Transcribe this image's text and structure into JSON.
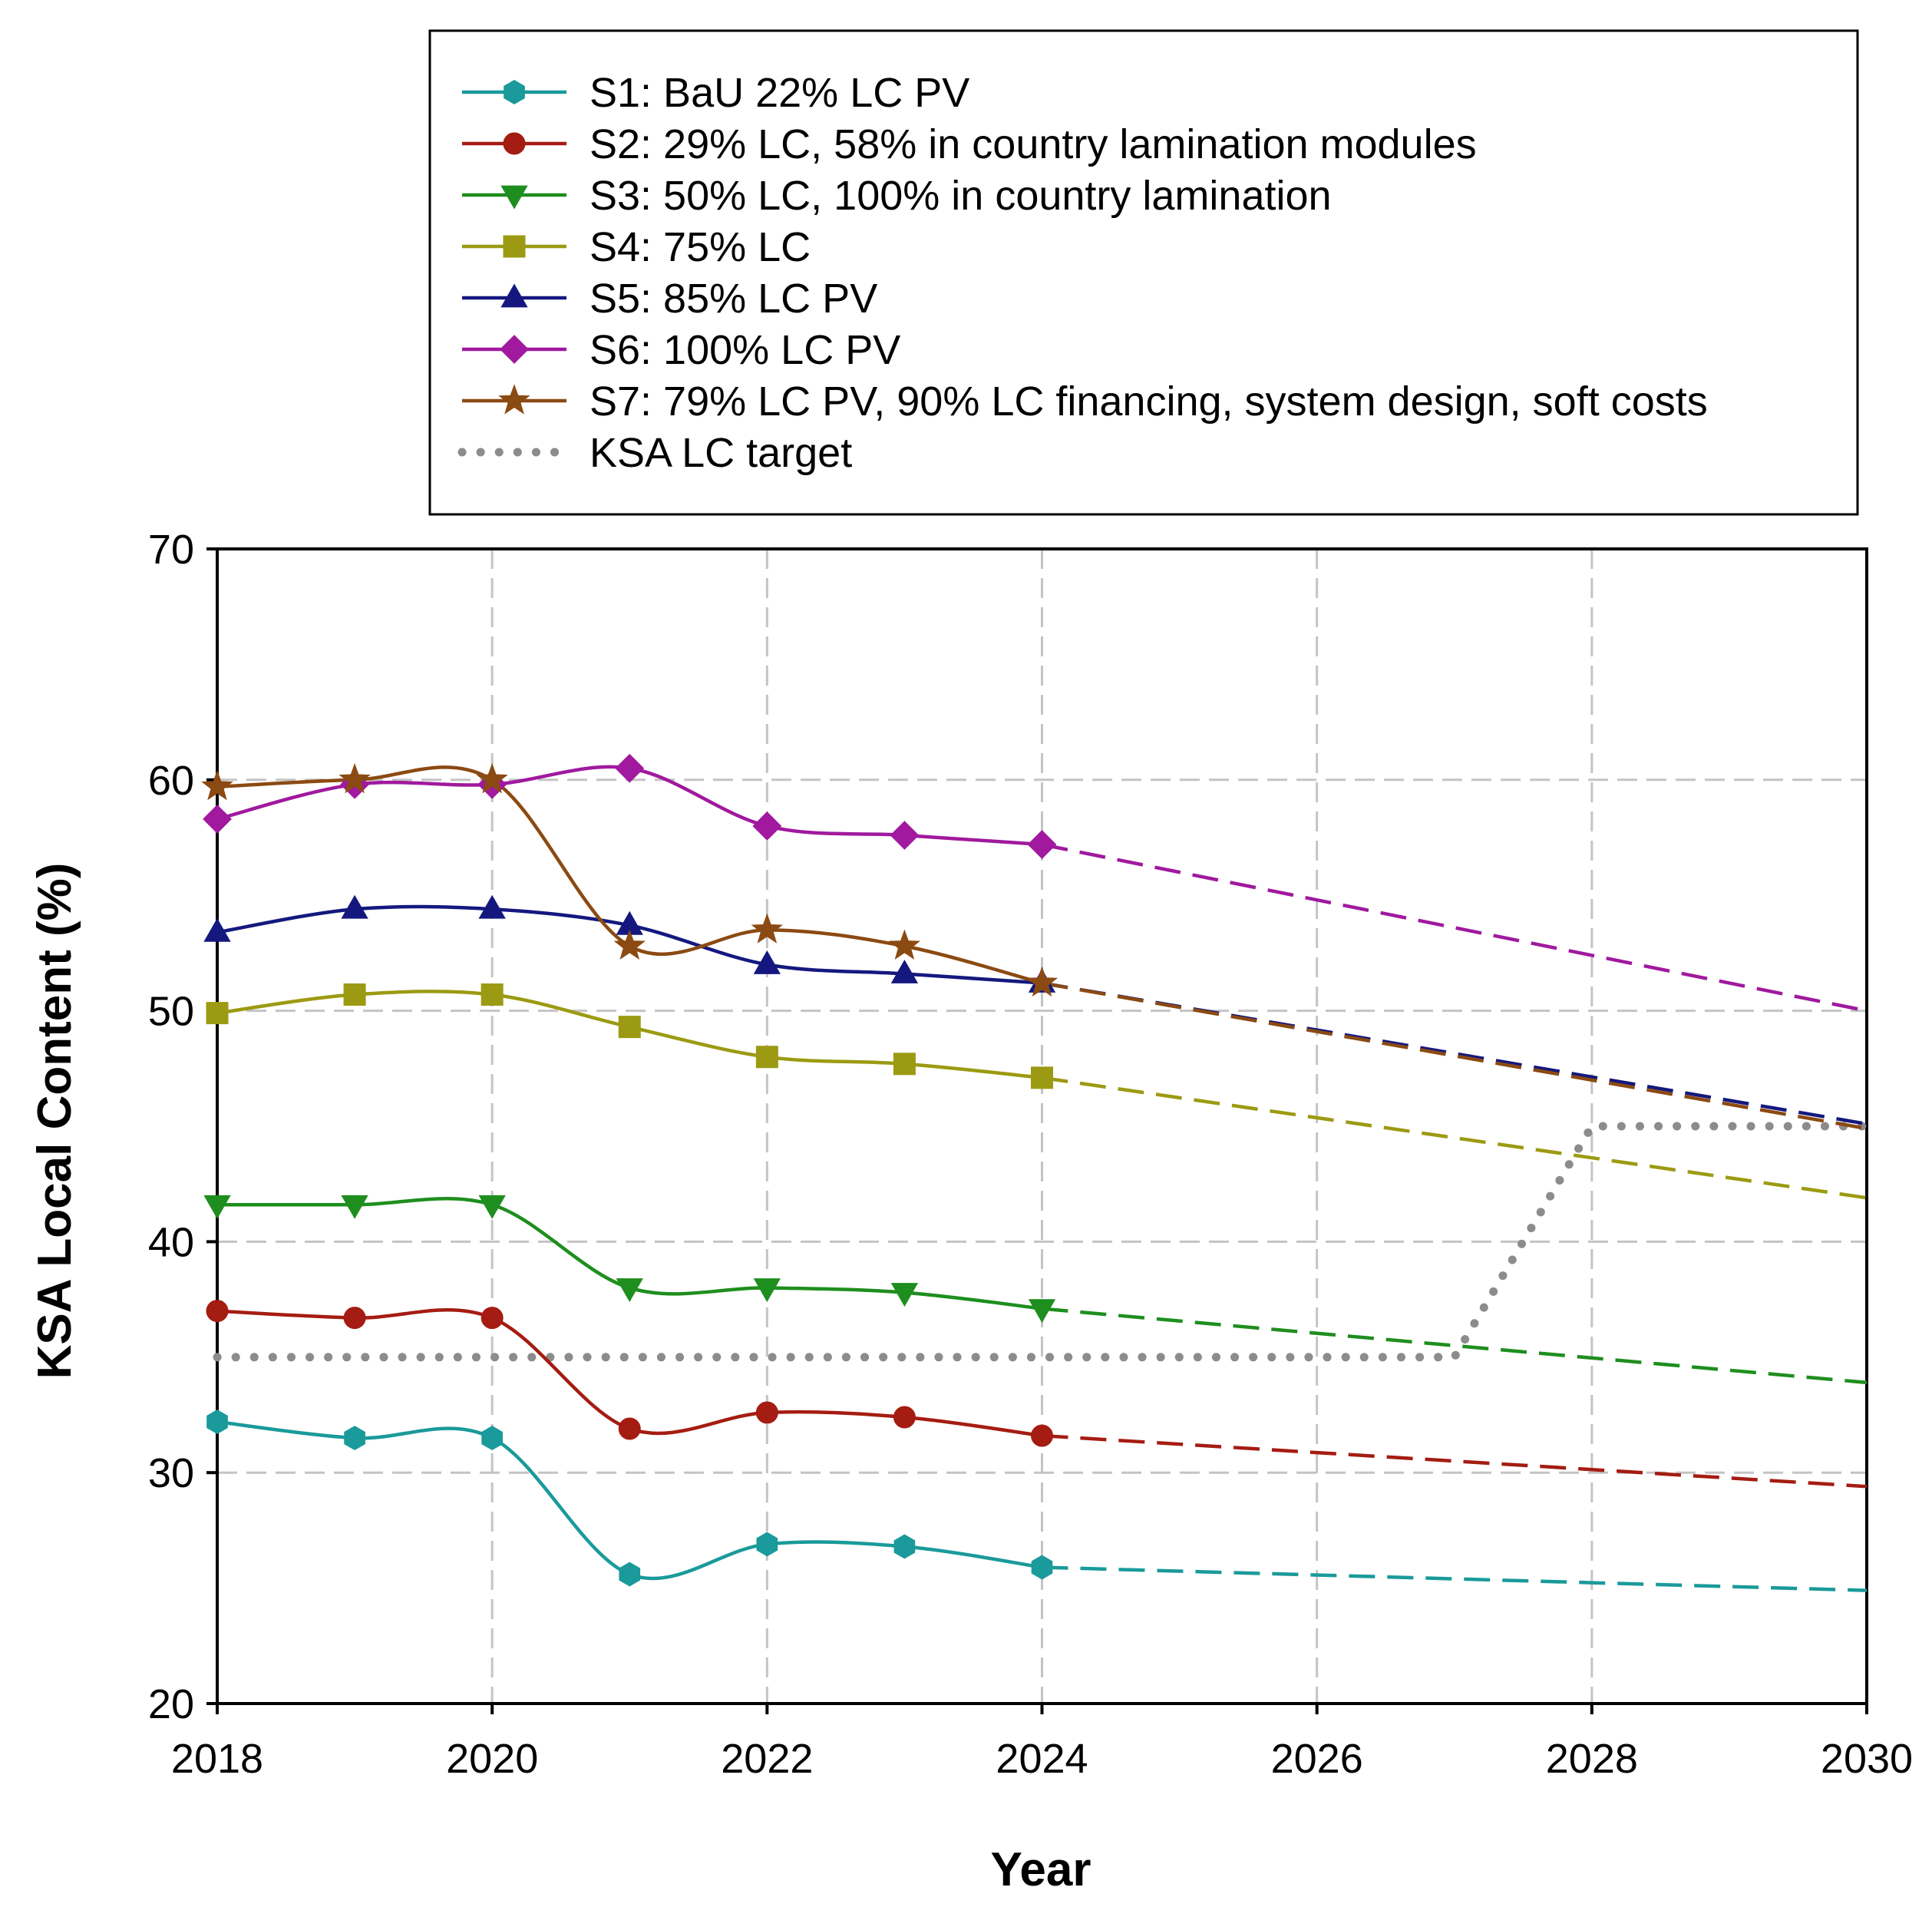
{
  "chart_data": {
    "type": "line",
    "xlabel": "Year",
    "ylabel": "KSA Local Content (%)",
    "xlim": [
      2018,
      2030
    ],
    "ylim": [
      20,
      70
    ],
    "xticks": [
      2018,
      2020,
      2022,
      2024,
      2026,
      2028,
      2030
    ],
    "yticks": [
      20,
      30,
      40,
      50,
      60,
      70
    ],
    "x_tick_labels": [
      "2018",
      "2020",
      "2022",
      "2024",
      "2026",
      "2028",
      "2030"
    ],
    "y_tick_labels": [
      "20",
      "30",
      "40",
      "50",
      "60",
      "70"
    ],
    "grid": true,
    "legend_position": "top",
    "x": [
      2018,
      2019,
      2020,
      2021,
      2022,
      2023,
      2024
    ],
    "series": [
      {
        "name": "S1: BaU 22% LC PV",
        "color": "#1A9A9A",
        "marker": "hexagon",
        "values": [
          32.2,
          31.5,
          31.5,
          25.6,
          26.9,
          26.8,
          25.9
        ],
        "projection": {
          "x": [
            2024,
            2030
          ],
          "values": [
            25.9,
            24.9
          ]
        }
      },
      {
        "name": "S2: 29% LC, 58% in country lamination modules",
        "color": "#A51C12",
        "marker": "circle",
        "values": [
          37.0,
          36.7,
          36.7,
          31.9,
          32.6,
          32.4,
          31.6
        ],
        "projection": {
          "x": [
            2024,
            2030
          ],
          "values": [
            31.6,
            29.4
          ]
        }
      },
      {
        "name": "S3: 50% LC, 100% in country lamination",
        "color": "#1E8E1E",
        "marker": "triangle-down",
        "values": [
          41.6,
          41.6,
          41.6,
          38.0,
          38.0,
          37.8,
          37.1
        ],
        "projection": {
          "x": [
            2024,
            2030
          ],
          "values": [
            37.1,
            33.9
          ]
        }
      },
      {
        "name": "S4: 75% LC",
        "color": "#9C9A12",
        "marker": "square",
        "values": [
          49.9,
          50.7,
          50.7,
          49.3,
          48.0,
          47.7,
          47.1
        ],
        "projection": {
          "x": [
            2024,
            2030
          ],
          "values": [
            47.1,
            41.9
          ]
        }
      },
      {
        "name": "S5: 85% LC PV",
        "color": "#14187E",
        "marker": "triangle-up",
        "values": [
          53.4,
          54.4,
          54.4,
          53.7,
          52.0,
          51.6,
          51.2
        ],
        "projection": {
          "x": [
            2024,
            2030
          ],
          "values": [
            51.2,
            45.1
          ]
        }
      },
      {
        "name": "S6: 100% LC PV",
        "color": "#A0199E",
        "marker": "diamond",
        "values": [
          58.3,
          59.8,
          59.8,
          60.5,
          58.0,
          57.6,
          57.2
        ],
        "projection": {
          "x": [
            2024,
            2030
          ],
          "values": [
            57.2,
            50.0
          ]
        }
      },
      {
        "name": "S7: 79% LC PV, 90% LC financing, system design, soft costs",
        "color": "#8B4A12",
        "marker": "star",
        "values": [
          59.7,
          60.0,
          60.0,
          52.8,
          53.5,
          52.8,
          51.2
        ],
        "projection": {
          "x": [
            2024,
            2030
          ],
          "values": [
            51.2,
            44.9
          ]
        }
      }
    ],
    "target": {
      "name": "KSA LC target",
      "color": "#8C8C8C",
      "x": [
        2018,
        2027,
        2028,
        2030
      ],
      "values": [
        35.0,
        35.0,
        45.0,
        45.0
      ]
    }
  }
}
